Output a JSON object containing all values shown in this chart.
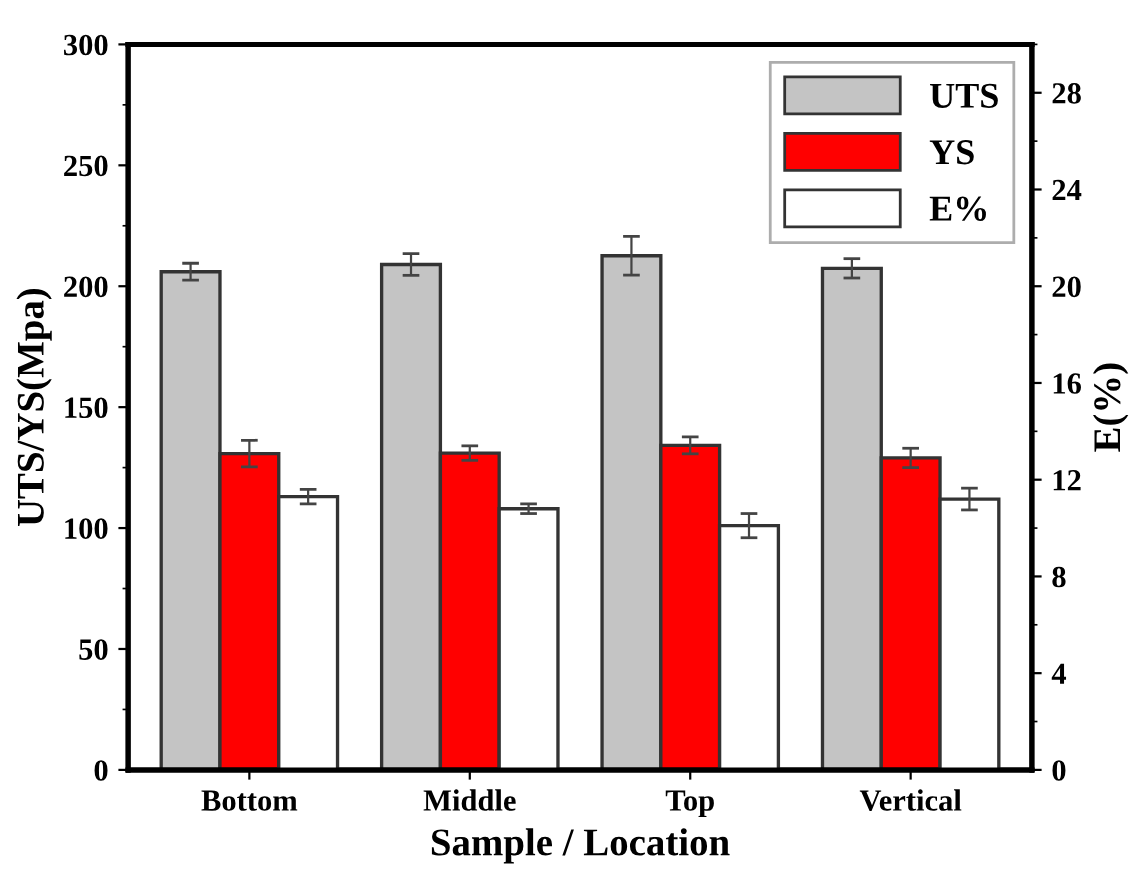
{
  "chart_data": {
    "type": "bar",
    "xlabel": "Sample / Location",
    "ylabel": "UTS/YS(Mpa)",
    "y2label": "E(%)",
    "categories": [
      "Bottom",
      "Middle",
      "Top",
      "Vertical"
    ],
    "series": [
      {
        "name": "UTS",
        "color": "#c4c4c4",
        "values": [
          206,
          209,
          212.6,
          207.4
        ],
        "errors": [
          3.5,
          4.5,
          8,
          4
        ]
      },
      {
        "name": "YS",
        "color": "#ff0000",
        "values": [
          130.8,
          131,
          134.2,
          129
        ],
        "errors": [
          5.5,
          3,
          3.5,
          4
        ]
      },
      {
        "name": "E%",
        "color": "#ffffff",
        "values": [
          11.3,
          10.8,
          10.1,
          11.2
        ],
        "errors": [
          0.3,
          0.2,
          0.5,
          0.45
        ],
        "axis": "y2"
      }
    ],
    "ylim": [
      0,
      300
    ],
    "yticks": [
      0,
      50,
      100,
      150,
      200,
      250,
      300
    ],
    "y2lim": [
      0,
      30
    ],
    "y2ticks": [
      0,
      4,
      8,
      12,
      16,
      20,
      24,
      28
    ],
    "legend": "top right",
    "grid": false
  }
}
